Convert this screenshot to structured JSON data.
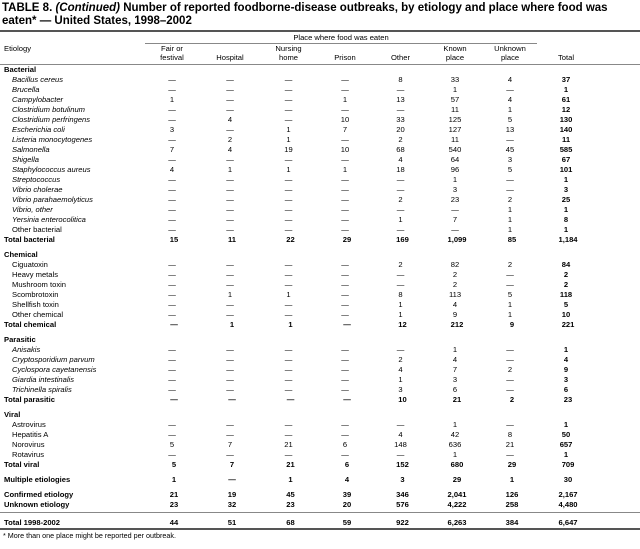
{
  "title": {
    "prefix": "TABLE 8.",
    "continued": "(Continued)",
    "text": "Number of reported foodborne-disease outbreaks, by etiology and place where food was eaten* — United States, 1998–2002"
  },
  "place_header": "Place where food was eaten",
  "columns": [
    [
      "Etiology",
      ""
    ],
    [
      "Fair or",
      "festival"
    ],
    [
      "",
      "Hospital"
    ],
    [
      "Nursing",
      "home"
    ],
    [
      "",
      "Prison"
    ],
    [
      "",
      "Other"
    ],
    [
      "Known",
      "place"
    ],
    [
      "Unknown",
      "place"
    ],
    [
      "",
      "Total"
    ]
  ],
  "sections": [
    {
      "name": "Bacterial",
      "rows": [
        {
          "n": "Bacillus cereus",
          "i": true,
          "v": [
            "—",
            "—",
            "—",
            "—",
            "8",
            "33",
            "4",
            "37"
          ]
        },
        {
          "n": "Brucella",
          "i": true,
          "v": [
            "—",
            "—",
            "—",
            "—",
            "—",
            "1",
            "—",
            "1"
          ]
        },
        {
          "n": "Campylobacter",
          "i": true,
          "v": [
            "1",
            "—",
            "—",
            "1",
            "13",
            "57",
            "4",
            "61"
          ]
        },
        {
          "n": "Clostridium botulinum",
          "i": true,
          "v": [
            "—",
            "—",
            "—",
            "—",
            "—",
            "11",
            "1",
            "12"
          ]
        },
        {
          "n": "Clostridium perfringens",
          "i": true,
          "v": [
            "—",
            "4",
            "—",
            "10",
            "33",
            "125",
            "5",
            "130"
          ]
        },
        {
          "n": "Escherichia coli",
          "i": true,
          "v": [
            "3",
            "—",
            "1",
            "7",
            "20",
            "127",
            "13",
            "140"
          ]
        },
        {
          "n": "Listeria monocytogenes",
          "i": true,
          "v": [
            "—",
            "2",
            "1",
            "—",
            "2",
            "11",
            "—",
            "11"
          ]
        },
        {
          "n": "Salmonella",
          "i": true,
          "v": [
            "7",
            "4",
            "19",
            "10",
            "68",
            "540",
            "45",
            "585"
          ]
        },
        {
          "n": "Shigella",
          "i": true,
          "v": [
            "—",
            "—",
            "—",
            "—",
            "4",
            "64",
            "3",
            "67"
          ]
        },
        {
          "n": "Staphylococcus aureus",
          "i": true,
          "v": [
            "4",
            "1",
            "1",
            "1",
            "18",
            "96",
            "5",
            "101"
          ]
        },
        {
          "n": "Streptococcus",
          "i": true,
          "v": [
            "—",
            "—",
            "—",
            "—",
            "—",
            "1",
            "—",
            "1"
          ]
        },
        {
          "n": "Vibrio cholerae",
          "i": true,
          "v": [
            "—",
            "—",
            "—",
            "—",
            "—",
            "3",
            "—",
            "3"
          ]
        },
        {
          "n": "Vibrio parahaemolyticus",
          "i": true,
          "v": [
            "—",
            "—",
            "—",
            "—",
            "2",
            "23",
            "2",
            "25"
          ]
        },
        {
          "n": "Vibrio, other",
          "i": true,
          "v": [
            "—",
            "—",
            "—",
            "—",
            "—",
            "—",
            "1",
            "1"
          ]
        },
        {
          "n": "Yersinia enterocolitica",
          "i": true,
          "v": [
            "—",
            "—",
            "—",
            "—",
            "1",
            "7",
            "1",
            "8"
          ]
        },
        {
          "n": "Other bacterial",
          "i": false,
          "v": [
            "—",
            "—",
            "—",
            "—",
            "—",
            "—",
            "1",
            "1"
          ]
        },
        {
          "n": "Total bacterial",
          "t": true,
          "v": [
            "15",
            "11",
            "22",
            "29",
            "169",
            "1,099",
            "85",
            "1,184"
          ]
        }
      ]
    },
    {
      "name": "Chemical",
      "rows": [
        {
          "n": "Ciguatoxin",
          "v": [
            "—",
            "—",
            "—",
            "—",
            "2",
            "82",
            "2",
            "84"
          ]
        },
        {
          "n": "Heavy metals",
          "v": [
            "—",
            "—",
            "—",
            "—",
            "—",
            "2",
            "—",
            "2"
          ]
        },
        {
          "n": "Mushroom toxin",
          "v": [
            "—",
            "—",
            "—",
            "—",
            "—",
            "2",
            "—",
            "2"
          ]
        },
        {
          "n": "Scombrotoxin",
          "v": [
            "—",
            "1",
            "1",
            "—",
            "8",
            "113",
            "5",
            "118"
          ]
        },
        {
          "n": "Shellfish toxin",
          "v": [
            "—",
            "—",
            "—",
            "—",
            "1",
            "4",
            "1",
            "5"
          ]
        },
        {
          "n": "Other chemical",
          "v": [
            "—",
            "—",
            "—",
            "—",
            "1",
            "9",
            "1",
            "10"
          ]
        },
        {
          "n": "Total chemical",
          "t": true,
          "v": [
            "—",
            "1",
            "1",
            "—",
            "12",
            "212",
            "9",
            "221"
          ]
        }
      ]
    },
    {
      "name": "Parasitic",
      "rows": [
        {
          "n": "Anisakis",
          "i": true,
          "v": [
            "—",
            "—",
            "—",
            "—",
            "—",
            "1",
            "—",
            "1"
          ]
        },
        {
          "n": "Cryptosporidium parvum",
          "i": true,
          "v": [
            "—",
            "—",
            "—",
            "—",
            "2",
            "4",
            "—",
            "4"
          ]
        },
        {
          "n": "Cyclospora cayetanensis",
          "i": true,
          "v": [
            "—",
            "—",
            "—",
            "—",
            "4",
            "7",
            "2",
            "9"
          ]
        },
        {
          "n": "Giardia intestinalis",
          "i": true,
          "v": [
            "—",
            "—",
            "—",
            "—",
            "1",
            "3",
            "—",
            "3"
          ]
        },
        {
          "n": "Trichinella spiralis",
          "i": true,
          "v": [
            "—",
            "—",
            "—",
            "—",
            "3",
            "6",
            "—",
            "6"
          ]
        },
        {
          "n": "Total parasitic",
          "t": true,
          "v": [
            "—",
            "—",
            "—",
            "—",
            "10",
            "21",
            "2",
            "23"
          ]
        }
      ]
    },
    {
      "name": "Viral",
      "rows": [
        {
          "n": "Astrovirus",
          "v": [
            "—",
            "—",
            "—",
            "—",
            "—",
            "1",
            "—",
            "1"
          ]
        },
        {
          "n": "Hepatitis A",
          "v": [
            "—",
            "—",
            "—",
            "—",
            "4",
            "42",
            "8",
            "50"
          ]
        },
        {
          "n": "Norovirus",
          "v": [
            "5",
            "7",
            "21",
            "6",
            "148",
            "636",
            "21",
            "657"
          ]
        },
        {
          "n": "Rotavirus",
          "v": [
            "—",
            "—",
            "—",
            "—",
            "—",
            "1",
            "—",
            "1"
          ]
        },
        {
          "n": "Total viral",
          "t": true,
          "v": [
            "5",
            "7",
            "21",
            "6",
            "152",
            "680",
            "29",
            "709"
          ]
        }
      ]
    }
  ],
  "multiple": {
    "n": "Multiple etiologies",
    "v": [
      "1",
      "—",
      "1",
      "4",
      "3",
      "29",
      "1",
      "30"
    ]
  },
  "confirmed": {
    "n": "Confirmed etiology",
    "v": [
      "21",
      "19",
      "45",
      "39",
      "346",
      "2,041",
      "126",
      "2,167"
    ]
  },
  "unknown": {
    "n": "Unknown etiology",
    "v": [
      "23",
      "32",
      "23",
      "20",
      "576",
      "4,222",
      "258",
      "4,480"
    ]
  },
  "total": {
    "n": "Total 1998-2002",
    "v": [
      "44",
      "51",
      "68",
      "59",
      "922",
      "6,263",
      "384",
      "6,647"
    ]
  },
  "footnote": "* More than one place might be reported per outbreak."
}
